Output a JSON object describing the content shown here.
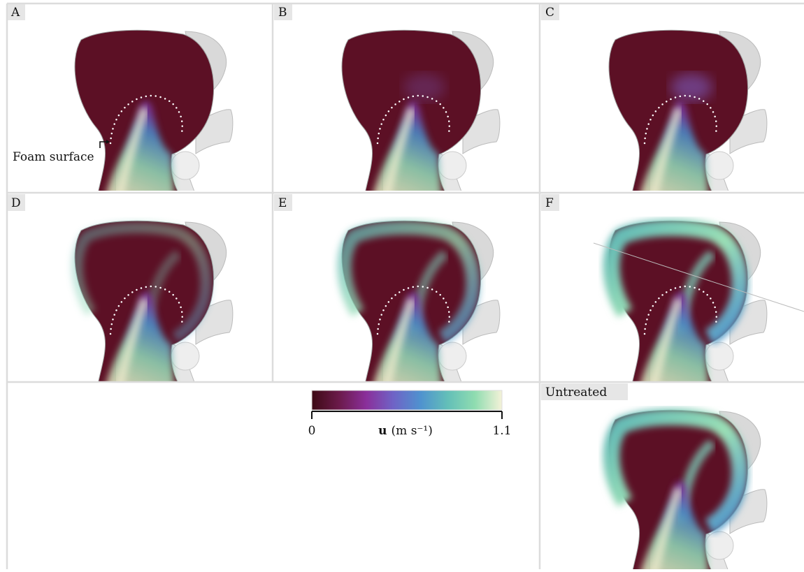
{
  "panels": [
    {
      "label": "A"
    },
    {
      "label": "B"
    },
    {
      "label": "C"
    },
    {
      "label": "D"
    },
    {
      "label": "E"
    },
    {
      "label": "F"
    },
    {
      "label": "Untreated"
    }
  ],
  "annotation": "Foam surface",
  "colorbar": {
    "symbol": "u",
    "unit": "(m s⁻¹)",
    "ticks": [
      0,
      1.1
    ],
    "colors": [
      "#3d0a14",
      "#6b1a4a",
      "#8a2f9a",
      "#6f63c6",
      "#4f92cf",
      "#63bfb8",
      "#8fdcb0",
      "#f4f2d8"
    ]
  }
}
